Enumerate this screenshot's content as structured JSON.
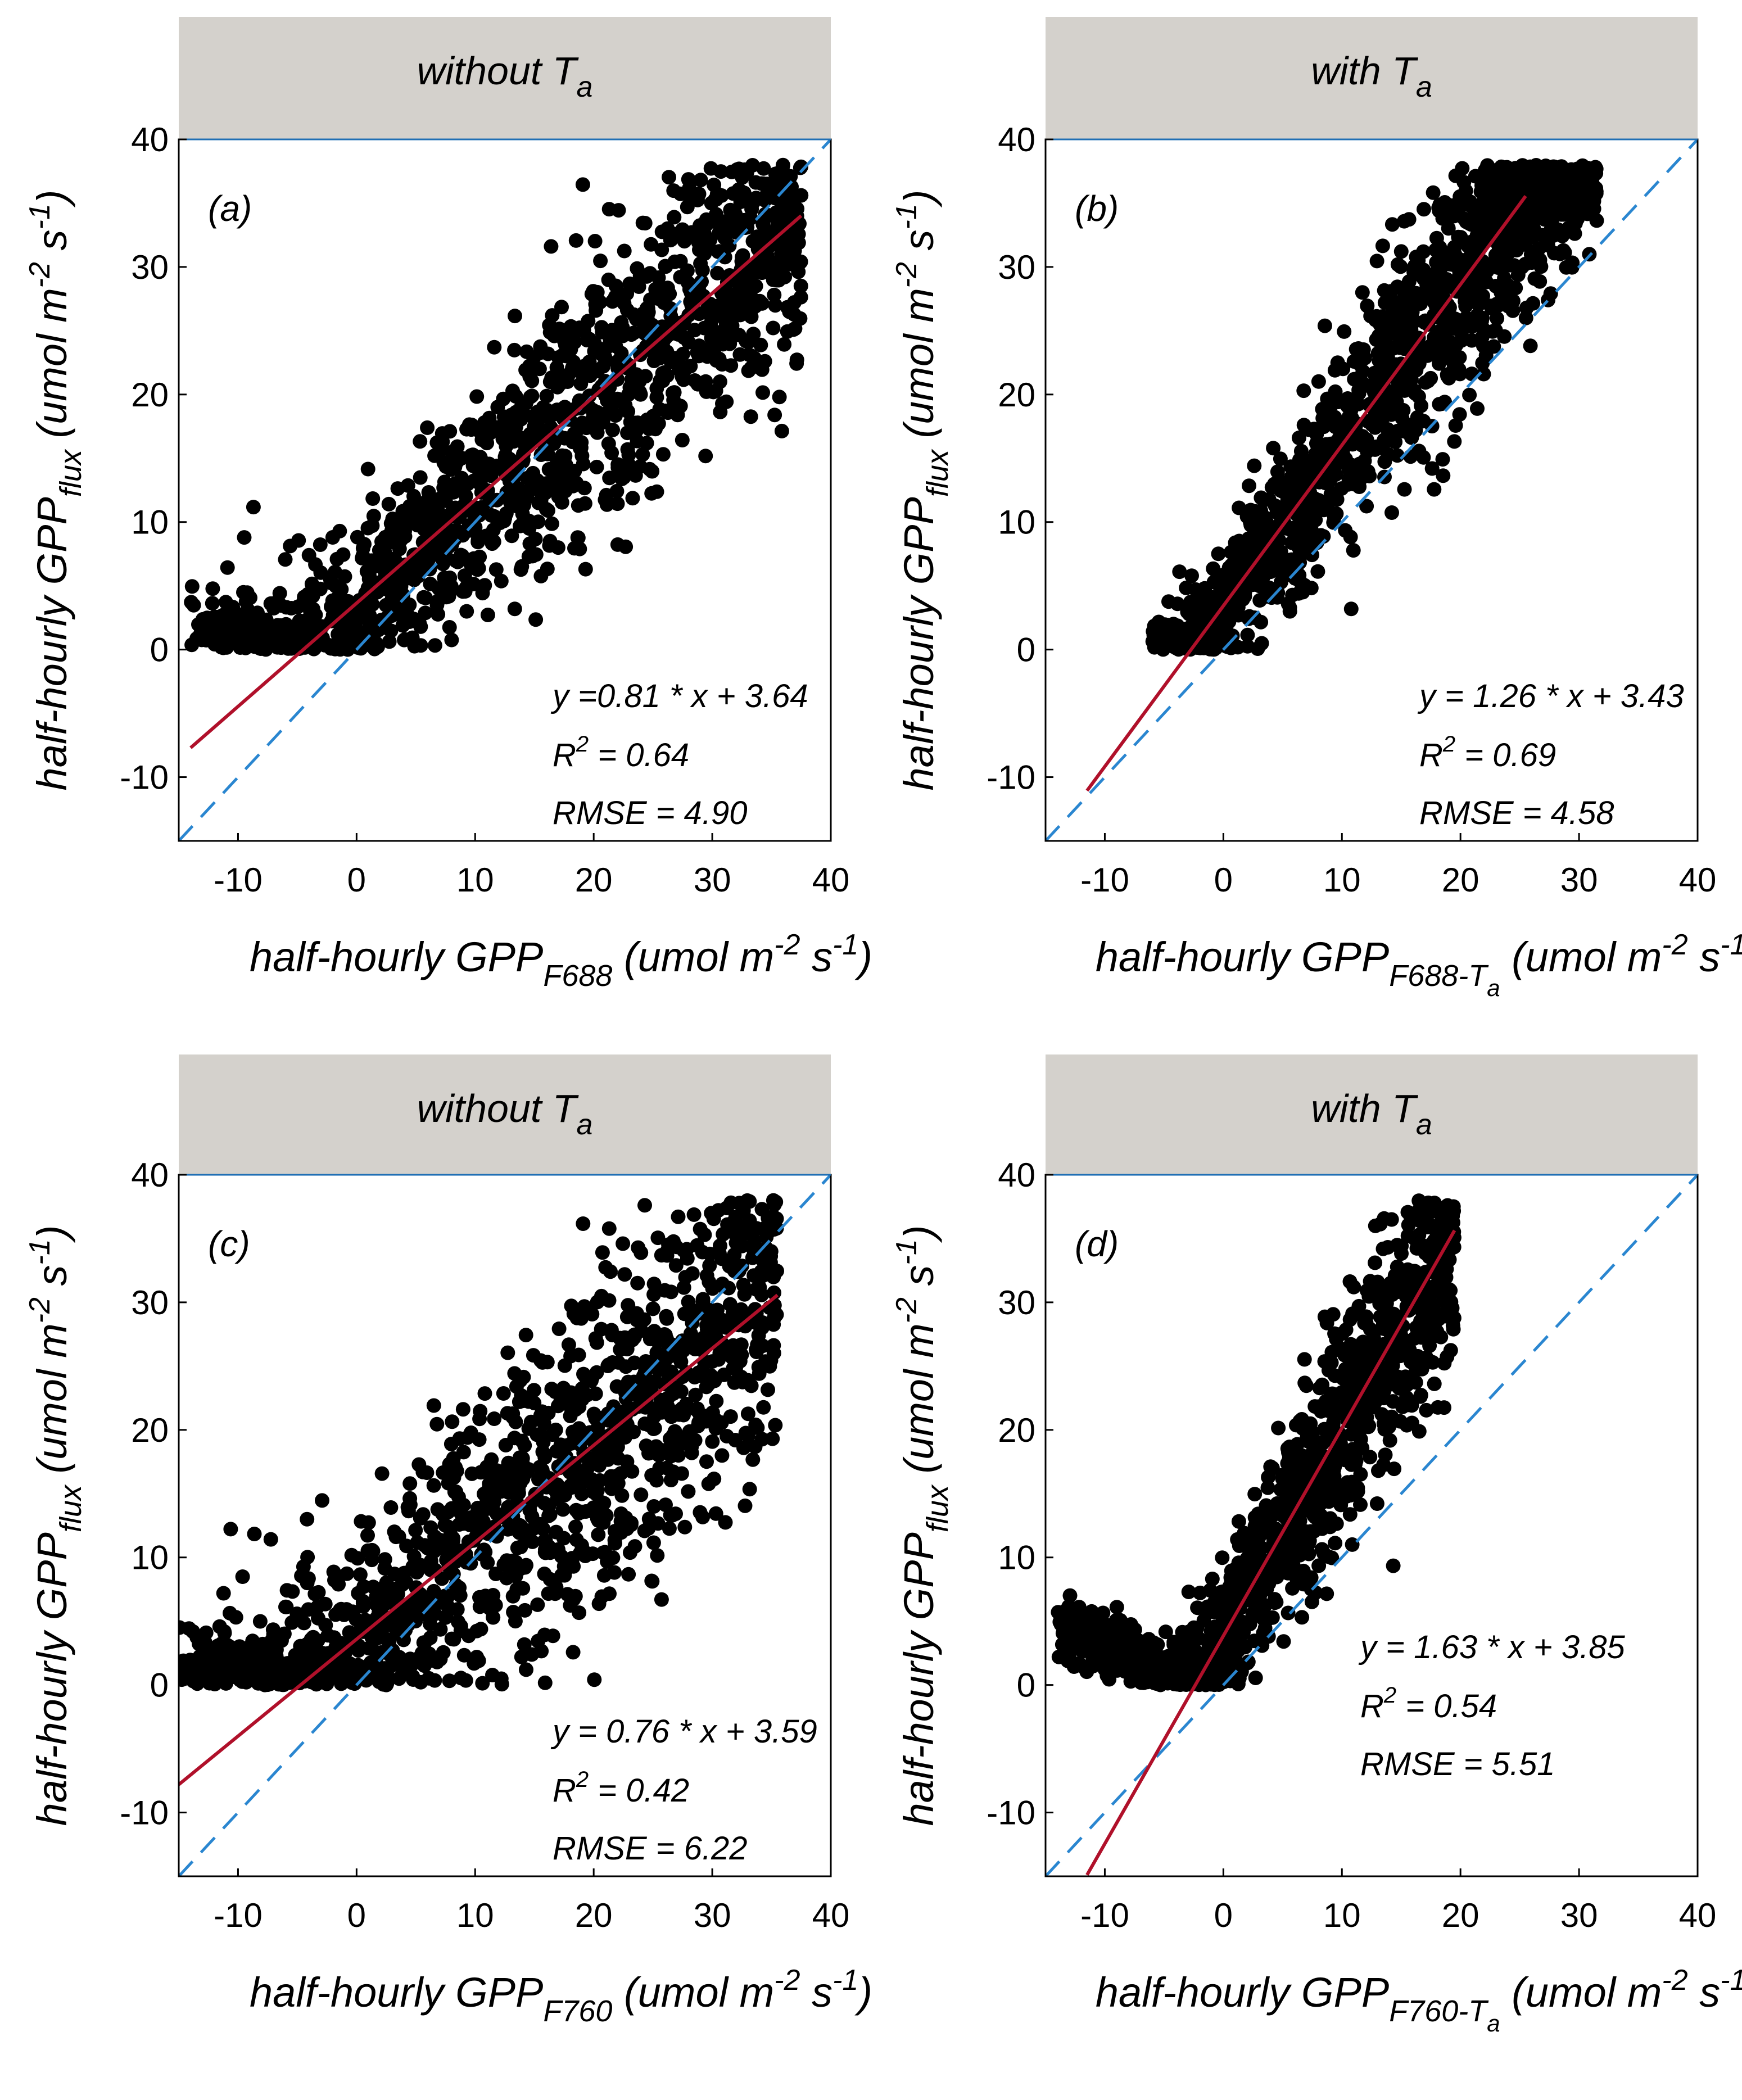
{
  "colors": {
    "strip_background": "#d4d1cc",
    "points": "#000000",
    "fit_line": "#b0102a",
    "one_to_one_line": "#2a86d0"
  },
  "chart_data": [
    {
      "type": "scatter",
      "panel_label": "(a)",
      "strip": {
        "text": "without ",
        "sub": "a",
        "var": "T"
      },
      "xlabel": {
        "prefix": "half-hourly GPP",
        "sub": "F688",
        "sub_tail": "",
        "unit": "(umol m",
        "exp1": "-2",
        "unit_mid": " s",
        "exp2": "-1",
        "unit_end": ")"
      },
      "ylabel": {
        "prefix": "half-hourly GPP",
        "sub": "flux",
        "unit": "(umol m",
        "exp1": "-2",
        "unit_mid": " s",
        "exp2": "-1",
        "unit_end": ")"
      },
      "xlim": [
        -15,
        40
      ],
      "ylim": [
        -15,
        40
      ],
      "xticks": [
        -10,
        0,
        10,
        20,
        30,
        40
      ],
      "yticks": [
        -10,
        0,
        10,
        20,
        30,
        40
      ],
      "fit": {
        "slope": 0.81,
        "intercept": 3.64,
        "x_range": [
          -14,
          37.5
        ]
      },
      "one_to_one": true,
      "stats": {
        "equation": "y =0.81 * x + 3.64",
        "r2_prefix": "R",
        "r2_exp": "2",
        "r2_value": " = 0.64",
        "rmse": "RMSE = 4.90"
      },
      "cloud": {
        "x_range": [
          -14,
          37.5
        ],
        "slope": 0.81,
        "intercept": 3.64,
        "spread": 5.5,
        "n": 1400,
        "seed": 11
      }
    },
    {
      "type": "scatter",
      "panel_label": "(b)",
      "strip": {
        "text": "with ",
        "sub": "a",
        "var": "T"
      },
      "xlabel": {
        "prefix": "half-hourly GPP",
        "sub": "F688-T",
        "sub_tail": "a",
        "unit": "(umol m",
        "exp1": "-2",
        "unit_mid": " s",
        "exp2": "-1",
        "unit_end": ")"
      },
      "ylabel": {
        "prefix": "half-hourly GPP",
        "sub": "flux",
        "unit": "(umol m",
        "exp1": "-2",
        "unit_mid": " s",
        "exp2": "-1",
        "unit_end": ")"
      },
      "xlim": [
        -15,
        40
      ],
      "ylim": [
        -15,
        40
      ],
      "xticks": [
        -10,
        0,
        10,
        20,
        30,
        40
      ],
      "yticks": [
        -10,
        0,
        10,
        20,
        30,
        40
      ],
      "fit": {
        "slope": 1.26,
        "intercept": 3.43,
        "x_range": [
          -11.5,
          25.5
        ]
      },
      "one_to_one": true,
      "stats": {
        "equation": "y = 1.26 * x + 3.43",
        "r2_prefix": "R",
        "r2_exp": "2",
        "r2_value": " = 0.69",
        "rmse": "RMSE = 4.58"
      },
      "cloud": {
        "x_range": [
          -6,
          31.5
        ],
        "slope": 1.26,
        "intercept": 3.43,
        "spread": 4.8,
        "n": 1400,
        "seed": 23
      }
    },
    {
      "type": "scatter",
      "panel_label": "(c)",
      "strip": {
        "text": "without ",
        "sub": "a",
        "var": "T"
      },
      "xlabel": {
        "prefix": "half-hourly GPP",
        "sub": "F760",
        "sub_tail": "",
        "unit": "(umol m",
        "exp1": "-2",
        "unit_mid": " s",
        "exp2": "-1",
        "unit_end": ")"
      },
      "ylabel": {
        "prefix": "half-hourly GPP",
        "sub": "flux",
        "unit": "(umol m",
        "exp1": "-2",
        "unit_mid": " s",
        "exp2": "-1",
        "unit_end": ")"
      },
      "xlim": [
        -15,
        40
      ],
      "ylim": [
        -15,
        40
      ],
      "xticks": [
        -10,
        0,
        10,
        20,
        30,
        40
      ],
      "yticks": [
        -10,
        0,
        10,
        20,
        30,
        40
      ],
      "fit": {
        "slope": 0.76,
        "intercept": 3.59,
        "x_range": [
          -15,
          35.5
        ]
      },
      "one_to_one": true,
      "stats": {
        "equation": "y = 0.76 * x + 3.59",
        "r2_prefix": "R",
        "r2_exp": "2",
        "r2_value": " = 0.42",
        "rmse": "RMSE = 6.22"
      },
      "cloud": {
        "x_range": [
          -15,
          35.5
        ],
        "slope": 0.76,
        "intercept": 3.59,
        "spread": 7.0,
        "n": 1400,
        "seed": 37
      }
    },
    {
      "type": "scatter",
      "panel_label": "(d)",
      "strip": {
        "text": "with ",
        "sub": "a",
        "var": "T"
      },
      "xlabel": {
        "prefix": "half-hourly GPP",
        "sub": "F760-T",
        "sub_tail": "a",
        "unit": "(umol m",
        "exp1": "-2",
        "unit_mid": " s",
        "exp2": "-1",
        "unit_end": ")"
      },
      "ylabel": {
        "prefix": "half-hourly GPP",
        "sub": "flux",
        "unit": "(umol m",
        "exp1": "-2",
        "unit_mid": " s",
        "exp2": "-1",
        "unit_end": ")"
      },
      "xlim": [
        -15,
        40
      ],
      "ylim": [
        -15,
        40
      ],
      "xticks": [
        -10,
        0,
        10,
        20,
        30,
        40
      ],
      "yticks": [
        -10,
        0,
        10,
        20,
        30,
        40
      ],
      "fit": {
        "slope": 1.63,
        "intercept": 3.85,
        "x_range": [
          -11.5,
          19.5
        ]
      },
      "one_to_one": true,
      "stats": {
        "equation": "y = 1.63 * x + 3.85",
        "r2_prefix": "R",
        "r2_exp": "2",
        "r2_value": " = 0.54",
        "rmse": "RMSE = 5.51"
      },
      "cloud": {
        "x_range": [
          -14,
          19.5
        ],
        "slope": 1.63,
        "intercept": 3.85,
        "spread": 5.5,
        "n": 1400,
        "seed": 53
      }
    }
  ]
}
